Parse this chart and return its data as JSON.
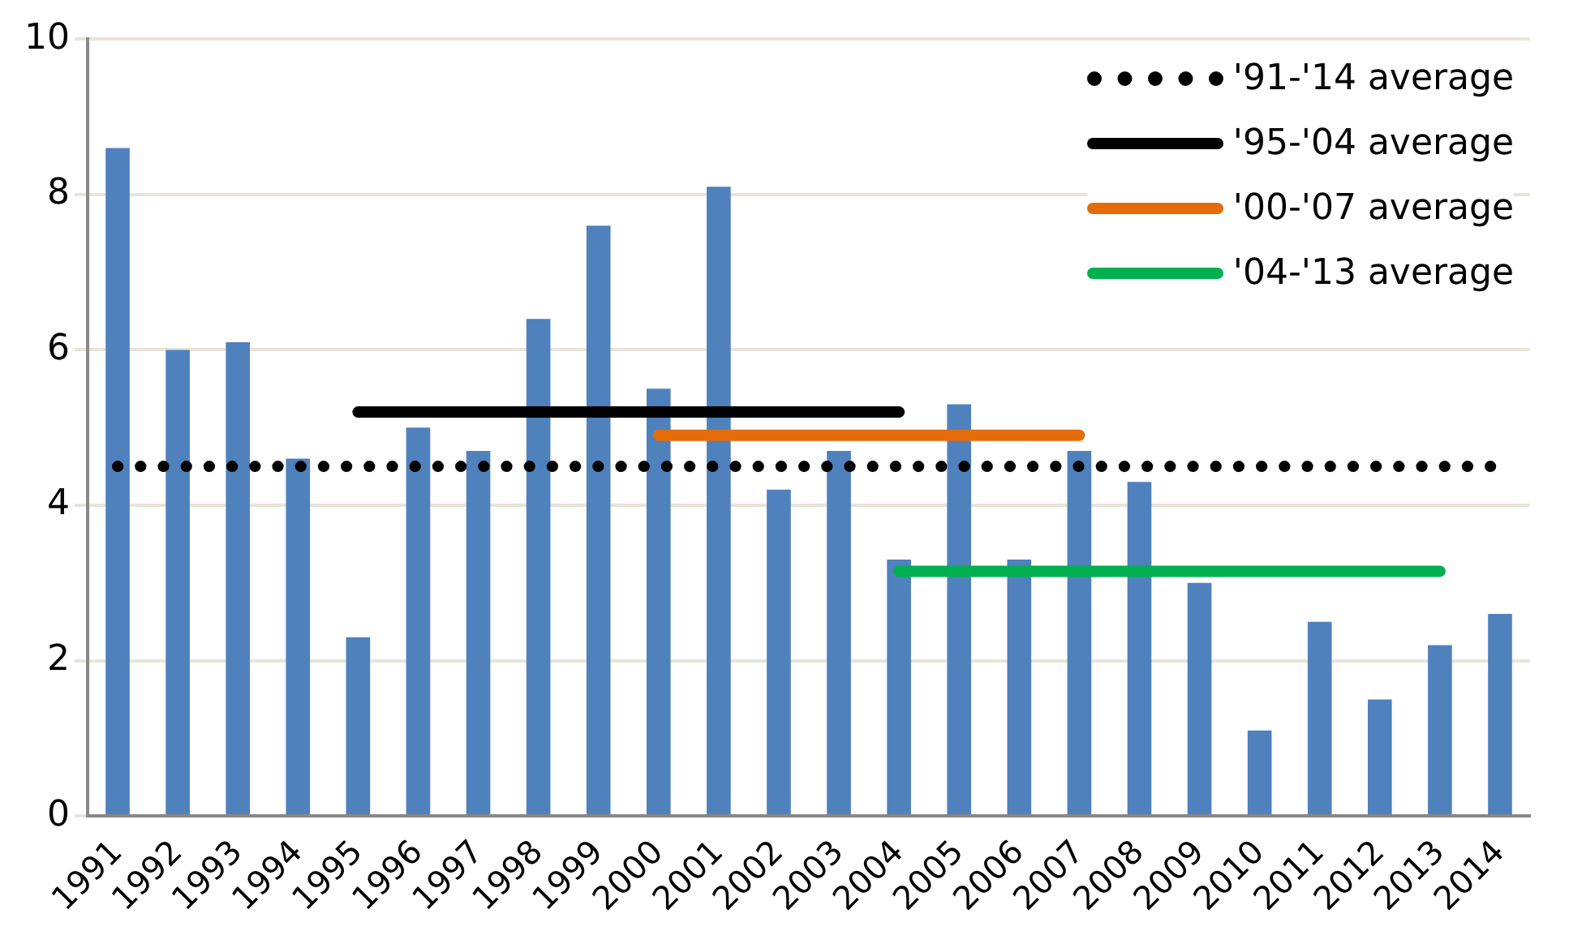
{
  "chart_data": {
    "type": "bar",
    "categories": [
      "1991",
      "1992",
      "1993",
      "1994",
      "1995",
      "1996",
      "1997",
      "1998",
      "1999",
      "2000",
      "2001",
      "2002",
      "2003",
      "2004",
      "2005",
      "2006",
      "2007",
      "2008",
      "2009",
      "2010",
      "2011",
      "2012",
      "2013",
      "2014"
    ],
    "series": [
      {
        "color": "#4f81bd",
        "values": [
          8.6,
          6.0,
          6.1,
          4.6,
          2.3,
          5.0,
          4.7,
          6.4,
          7.6,
          5.5,
          8.1,
          4.2,
          4.7,
          3.3,
          5.3,
          3.3,
          4.7,
          4.3,
          3.0,
          1.1,
          2.5,
          1.5,
          2.2,
          2.6
        ]
      },
      {
        "type": "line",
        "name": "'91-'14 average",
        "color": "#000000",
        "line_style": "dotted",
        "values": [
          4.5,
          4.5,
          4.5,
          4.5,
          4.5,
          4.5,
          4.5,
          4.5,
          4.5,
          4.5,
          4.5,
          4.5,
          4.5,
          4.5,
          4.5,
          4.5,
          4.5,
          4.5,
          4.5,
          4.5,
          4.5,
          4.5,
          4.5,
          4.5
        ]
      },
      {
        "type": "line",
        "name": "'95-'04 average",
        "color": "#000000",
        "line_style": "solid",
        "values": [
          null,
          null,
          null,
          null,
          5.2,
          5.2,
          5.2,
          5.2,
          5.2,
          5.2,
          5.2,
          5.2,
          5.2,
          5.2,
          null,
          null,
          null,
          null,
          null,
          null,
          null,
          null,
          null,
          null
        ]
      },
      {
        "type": "line",
        "name": "'00-'07 average",
        "color": "#e46c0a",
        "line_style": "solid",
        "values": [
          null,
          null,
          null,
          null,
          null,
          null,
          null,
          null,
          null,
          4.9,
          4.9,
          4.9,
          4.9,
          4.9,
          4.9,
          4.9,
          4.9,
          null,
          null,
          null,
          null,
          null,
          null,
          null
        ]
      },
      {
        "type": "line",
        "name": "'04-'13 average",
        "color": "#00b050",
        "line_style": "solid",
        "values": [
          null,
          null,
          null,
          null,
          null,
          null,
          null,
          null,
          null,
          null,
          null,
          null,
          null,
          3.15,
          3.15,
          3.15,
          3.15,
          3.15,
          3.15,
          3.15,
          3.15,
          3.15,
          3.15,
          null
        ]
      }
    ],
    "ylim": [
      0,
      10
    ],
    "yticks": [
      0,
      2,
      4,
      6,
      8,
      10
    ],
    "grid": "y",
    "legend": "top right",
    "marker": "none"
  }
}
